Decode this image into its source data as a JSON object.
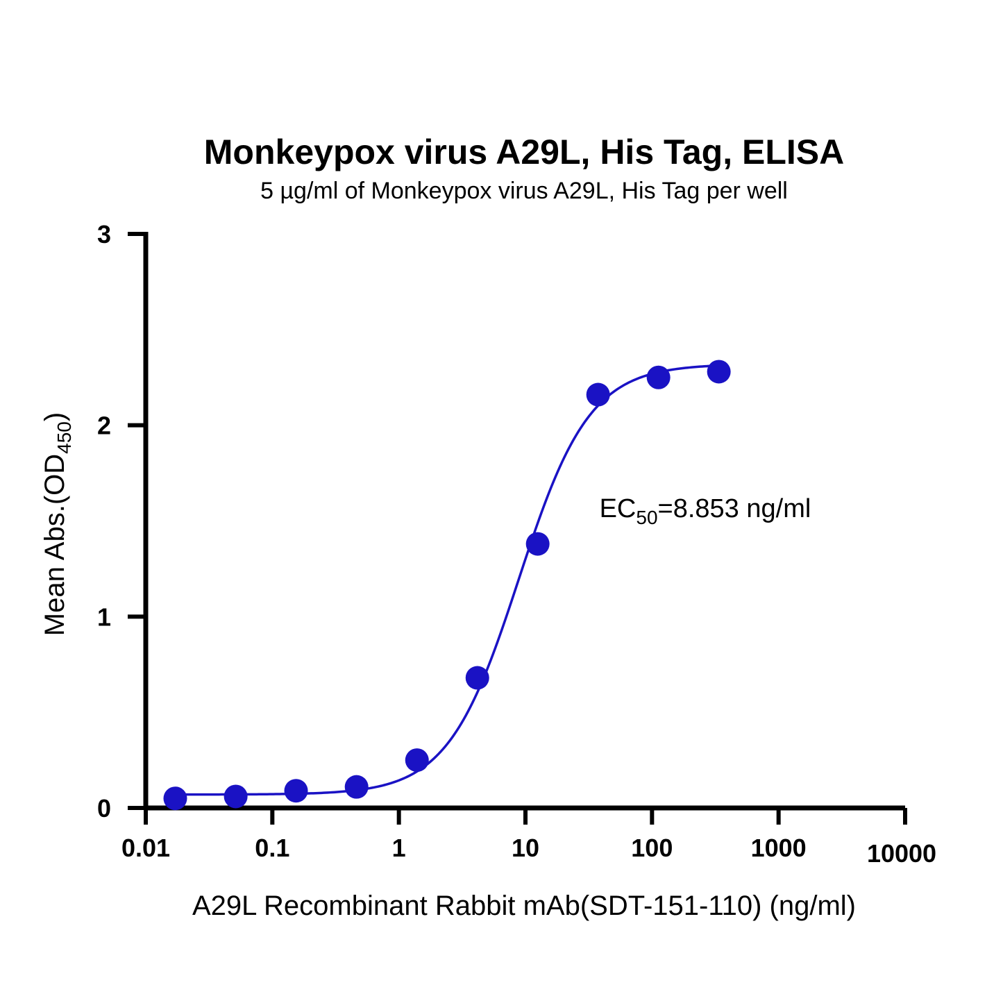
{
  "chart_data": {
    "type": "scatter",
    "title": "Monkeypox virus A29L, His Tag, ELISA",
    "subtitle": "5 µg/ml of Monkeypox virus A29L, His Tag per well",
    "xlabel": "A29L Recombinant Rabbit mAb(SDT-151-110) (ng/ml)",
    "ylabel_main": "Mean Abs.(OD",
    "ylabel_sub": "450",
    "ylabel_close": ")",
    "x_scale": "log10",
    "xlim": [
      0.01,
      10000
    ],
    "ylim": [
      0,
      3
    ],
    "x_ticks": [
      0.01,
      0.1,
      1,
      10,
      100,
      1000,
      10000
    ],
    "x_tick_labels": [
      "0.01",
      "0.1",
      "1",
      "10",
      "100",
      "1000",
      "10000"
    ],
    "y_ticks": [
      0,
      1,
      2,
      3
    ],
    "y_tick_labels": [
      "0",
      "1",
      "2",
      "3"
    ],
    "grid": false,
    "series": [
      {
        "color": "#1a12c4",
        "x": [
          0.0171,
          0.0514,
          0.154,
          0.463,
          1.39,
          4.17,
          12.5,
          37.5,
          112.5,
          337.5
        ],
        "y": [
          0.05,
          0.06,
          0.09,
          0.11,
          0.25,
          0.68,
          1.38,
          2.16,
          2.25,
          2.28
        ]
      }
    ],
    "fit_curve": {
      "color": "#1a12c4",
      "model": "4PL",
      "bottom": 0.07,
      "top": 2.32,
      "ec50": 8.853,
      "hill": 1.55,
      "x_range": [
        0.0171,
        337.5
      ]
    },
    "annotation": {
      "prefix": "EC",
      "sub": "50",
      "suffix": "=8.853 ng/ml",
      "x": 1400,
      "y": 1.52
    }
  }
}
